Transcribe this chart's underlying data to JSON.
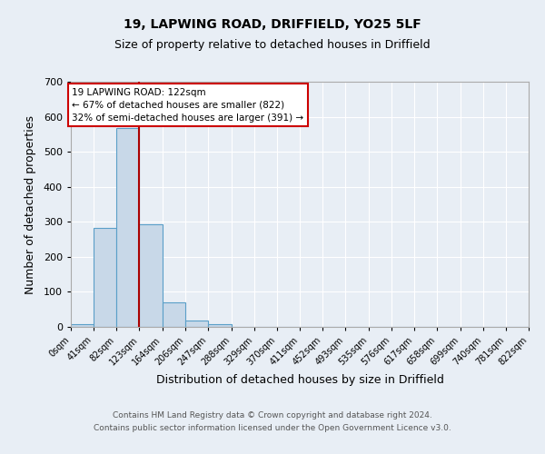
{
  "title1": "19, LAPWING ROAD, DRIFFIELD, YO25 5LF",
  "title2": "Size of property relative to detached houses in Driffield",
  "xlabel": "Distribution of detached houses by size in Driffield",
  "ylabel": "Number of detached properties",
  "bin_edges": [
    0,
    41,
    82,
    123,
    164,
    206,
    247,
    288,
    329,
    370,
    411,
    452,
    493,
    535,
    576,
    617,
    658,
    699,
    740,
    781,
    822
  ],
  "bar_heights": [
    8,
    282,
    567,
    292,
    70,
    17,
    9,
    0,
    0,
    0,
    0,
    0,
    0,
    0,
    0,
    0,
    0,
    0,
    0,
    0
  ],
  "bar_color": "#c8d8e8",
  "bar_edge_color": "#5a9fc8",
  "vline_x": 122,
  "vline_color": "#aa0000",
  "annotation_text": "19 LAPWING ROAD: 122sqm\n← 67% of detached houses are smaller (822)\n32% of semi-detached houses are larger (391) →",
  "annotation_box_color": "white",
  "annotation_box_edge": "#cc0000",
  "footer1": "Contains HM Land Registry data © Crown copyright and database right 2024.",
  "footer2": "Contains public sector information licensed under the Open Government Licence v3.0.",
  "bg_color": "#e8eef5",
  "plot_bg_color": "#e8eef5",
  "ylim": [
    0,
    700
  ],
  "yticks": [
    0,
    100,
    200,
    300,
    400,
    500,
    600,
    700
  ],
  "tick_labels": [
    "0sqm",
    "41sqm",
    "82sqm",
    "123sqm",
    "164sqm",
    "206sqm",
    "247sqm",
    "288sqm",
    "329sqm",
    "370sqm",
    "411sqm",
    "452sqm",
    "493sqm",
    "535sqm",
    "576sqm",
    "617sqm",
    "658sqm",
    "699sqm",
    "740sqm",
    "781sqm",
    "822sqm"
  ]
}
